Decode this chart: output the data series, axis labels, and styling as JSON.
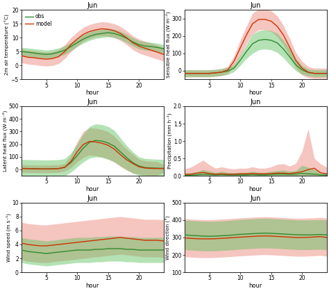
{
  "hours": [
    1,
    2,
    3,
    4,
    5,
    6,
    7,
    8,
    9,
    10,
    11,
    12,
    13,
    14,
    15,
    16,
    17,
    18,
    19,
    20,
    21,
    22,
    23,
    24
  ],
  "obs_color": "#2e8b2e",
  "model_color": "#cc3300",
  "obs_fill": "#5abf5a",
  "model_fill": "#e87060",
  "obs_fill_alpha": 0.45,
  "model_fill_alpha": 0.4,
  "subplots": [
    {
      "title": "Jun",
      "ylabel": "2m air temperature (°C)",
      "xlabel": "hour",
      "ylim": [
        -5,
        20
      ],
      "yticks": [
        -5,
        0,
        5,
        10,
        15,
        20
      ],
      "obs_mean": [
        5.0,
        4.8,
        4.5,
        4.2,
        4.0,
        4.2,
        4.8,
        5.5,
        6.8,
        8.2,
        9.5,
        10.5,
        11.2,
        11.5,
        11.8,
        11.5,
        10.8,
        9.8,
        8.5,
        7.5,
        7.0,
        6.8,
        6.5,
        6.0
      ],
      "obs_lo": [
        3.5,
        3.3,
        3.0,
        2.8,
        2.6,
        2.8,
        3.3,
        4.0,
        5.3,
        6.7,
        8.0,
        9.0,
        9.7,
        10.0,
        10.3,
        10.0,
        9.3,
        8.3,
        7.0,
        6.0,
        5.5,
        5.3,
        5.0,
        4.5
      ],
      "obs_hi": [
        6.5,
        6.3,
        6.0,
        5.8,
        5.5,
        5.8,
        6.3,
        7.0,
        8.3,
        9.7,
        11.0,
        12.0,
        12.7,
        13.0,
        13.3,
        13.0,
        12.3,
        11.3,
        10.0,
        9.0,
        8.5,
        8.3,
        8.0,
        7.5
      ],
      "model_mean": [
        3.5,
        3.0,
        2.8,
        2.5,
        2.3,
        2.5,
        3.2,
        5.0,
        7.5,
        9.5,
        11.2,
        12.2,
        12.8,
        13.2,
        13.0,
        12.5,
        11.5,
        10.0,
        8.2,
        7.0,
        6.2,
        5.5,
        4.8,
        4.0
      ],
      "model_lo": [
        1.0,
        0.5,
        0.3,
        0.0,
        -0.2,
        0.0,
        0.7,
        2.5,
        5.0,
        7.0,
        8.7,
        9.7,
        10.3,
        10.7,
        10.5,
        10.0,
        9.0,
        7.5,
        5.7,
        4.5,
        3.7,
        3.0,
        2.3,
        1.5
      ],
      "model_hi": [
        6.0,
        5.5,
        5.3,
        5.0,
        4.8,
        5.0,
        5.7,
        7.5,
        10.0,
        12.0,
        13.7,
        14.7,
        15.3,
        15.7,
        15.5,
        15.0,
        14.0,
        12.5,
        10.7,
        9.5,
        8.7,
        8.0,
        7.3,
        6.5
      ],
      "legend": true
    },
    {
      "title": "Jun",
      "ylabel": "Sensible heat flux (W m⁻²)",
      "xlabel": "hour",
      "ylim": [
        -50,
        350
      ],
      "yticks": [
        0,
        100,
        200,
        300
      ],
      "obs_mean": [
        -15,
        -15,
        -15,
        -15,
        -15,
        -12,
        -8,
        -2,
        15,
        60,
        110,
        155,
        175,
        180,
        175,
        160,
        125,
        80,
        35,
        5,
        -10,
        -15,
        -15,
        -15
      ],
      "obs_lo": [
        -35,
        -35,
        -35,
        -35,
        -35,
        -32,
        -28,
        -22,
        -5,
        30,
        70,
        100,
        120,
        125,
        120,
        105,
        75,
        35,
        0,
        -20,
        -30,
        -35,
        -35,
        -35
      ],
      "obs_hi": [
        5,
        5,
        5,
        5,
        5,
        8,
        12,
        18,
        35,
        90,
        150,
        210,
        230,
        235,
        230,
        215,
        175,
        125,
        70,
        30,
        10,
        5,
        5,
        5
      ],
      "model_mean": [
        -15,
        -15,
        -15,
        -15,
        -15,
        -12,
        -8,
        5,
        55,
        130,
        205,
        270,
        295,
        295,
        285,
        255,
        205,
        135,
        60,
        15,
        -8,
        -15,
        -15,
        -15
      ],
      "model_lo": [
        -35,
        -35,
        -35,
        -35,
        -35,
        -32,
        -28,
        -15,
        25,
        85,
        155,
        210,
        235,
        235,
        225,
        195,
        150,
        85,
        15,
        -25,
        -40,
        -45,
        -45,
        -45
      ],
      "model_hi": [
        5,
        5,
        5,
        5,
        5,
        8,
        12,
        25,
        85,
        175,
        255,
        330,
        355,
        355,
        345,
        315,
        260,
        185,
        105,
        55,
        24,
        15,
        15,
        15
      ],
      "legend": false
    },
    {
      "title": "Jun",
      "ylabel": "Latent heat flux (W m⁻²)",
      "xlabel": "hour",
      "ylim": [
        -50,
        500
      ],
      "yticks": [
        0,
        100,
        200,
        300,
        400,
        500
      ],
      "obs_mean": [
        10,
        8,
        7,
        6,
        5,
        6,
        8,
        18,
        55,
        110,
        170,
        215,
        230,
        225,
        210,
        185,
        140,
        95,
        55,
        28,
        16,
        13,
        11,
        10
      ],
      "obs_lo": [
        -60,
        -62,
        -63,
        -65,
        -65,
        -65,
        -62,
        -50,
        -20,
        20,
        60,
        90,
        100,
        95,
        80,
        60,
        30,
        0,
        -30,
        -45,
        -55,
        -58,
        -59,
        -60
      ],
      "obs_hi": [
        80,
        78,
        77,
        76,
        75,
        76,
        78,
        86,
        130,
        200,
        280,
        340,
        360,
        355,
        340,
        310,
        250,
        190,
        140,
        101,
        87,
        84,
        81,
        80
      ],
      "model_mean": [
        8,
        7,
        6,
        5,
        5,
        6,
        8,
        18,
        65,
        140,
        198,
        222,
        218,
        208,
        192,
        162,
        118,
        78,
        48,
        22,
        12,
        9,
        8,
        8
      ],
      "model_lo": [
        -22,
        -23,
        -24,
        -25,
        -25,
        -24,
        -22,
        -12,
        15,
        60,
        95,
        115,
        110,
        100,
        85,
        60,
        25,
        -5,
        -25,
        -38,
        -45,
        -47,
        -47,
        -22
      ],
      "model_hi": [
        38,
        37,
        36,
        35,
        35,
        36,
        38,
        48,
        115,
        220,
        301,
        329,
        326,
        316,
        299,
        264,
        211,
        161,
        121,
        82,
        69,
        65,
        63,
        38
      ],
      "legend": false
    },
    {
      "title": "Jun",
      "ylabel": "Precipitation (mm h⁻¹)",
      "xlabel": "hour",
      "ylim": [
        0,
        2.0
      ],
      "yticks": [
        0.0,
        0.5,
        1.0,
        1.5,
        2.0
      ],
      "obs_mean": [
        0.02,
        0.02,
        0.03,
        0.05,
        0.04,
        0.03,
        0.04,
        0.03,
        0.03,
        0.03,
        0.03,
        0.04,
        0.03,
        0.03,
        0.04,
        0.05,
        0.05,
        0.04,
        0.05,
        0.07,
        0.06,
        0.05,
        0.03,
        0.02
      ],
      "obs_lo": [
        0.0,
        0.0,
        0.0,
        0.0,
        0.0,
        0.0,
        0.0,
        0.0,
        0.0,
        0.0,
        0.0,
        0.0,
        0.0,
        0.0,
        0.0,
        0.0,
        0.0,
        0.0,
        0.0,
        0.0,
        0.0,
        0.0,
        0.0,
        0.0
      ],
      "obs_hi": [
        0.08,
        0.09,
        0.12,
        0.18,
        0.14,
        0.1,
        0.13,
        0.1,
        0.09,
        0.1,
        0.1,
        0.13,
        0.1,
        0.1,
        0.13,
        0.15,
        0.17,
        0.13,
        0.15,
        0.3,
        0.25,
        0.18,
        0.1,
        0.08
      ],
      "model_mean": [
        0.04,
        0.05,
        0.08,
        0.1,
        0.07,
        0.05,
        0.06,
        0.05,
        0.05,
        0.06,
        0.06,
        0.07,
        0.06,
        0.06,
        0.07,
        0.08,
        0.08,
        0.07,
        0.09,
        0.12,
        0.18,
        0.22,
        0.09,
        0.06
      ],
      "model_lo": [
        0.0,
        0.0,
        0.0,
        0.0,
        0.0,
        0.0,
        0.0,
        0.0,
        0.0,
        0.0,
        0.0,
        0.0,
        0.0,
        0.0,
        0.0,
        0.0,
        0.0,
        0.0,
        0.0,
        0.0,
        0.0,
        0.0,
        0.0,
        0.0
      ],
      "model_hi": [
        0.2,
        0.25,
        0.35,
        0.45,
        0.32,
        0.22,
        0.26,
        0.22,
        0.2,
        0.22,
        0.22,
        0.26,
        0.22,
        0.22,
        0.26,
        0.33,
        0.35,
        0.28,
        0.36,
        0.7,
        1.35,
        0.5,
        0.35,
        0.25
      ],
      "legend": false
    },
    {
      "title": "Jun",
      "ylabel": "Wind speed (m s⁻¹)",
      "xlabel": "hour",
      "ylim": [
        0,
        10
      ],
      "yticks": [
        0,
        2,
        4,
        6,
        8,
        10
      ],
      "obs_mean": [
        3.2,
        3.0,
        2.9,
        2.8,
        2.7,
        2.8,
        2.9,
        3.0,
        3.1,
        3.2,
        3.2,
        3.2,
        3.3,
        3.3,
        3.4,
        3.4,
        3.4,
        3.3,
        3.3,
        3.2,
        3.2,
        3.2,
        3.2,
        3.2
      ],
      "obs_lo": [
        1.4,
        1.2,
        1.1,
        1.0,
        0.9,
        1.0,
        1.1,
        1.2,
        1.3,
        1.4,
        1.4,
        1.4,
        1.5,
        1.5,
        1.6,
        1.6,
        1.6,
        1.5,
        1.5,
        1.4,
        1.4,
        1.4,
        1.4,
        1.4
      ],
      "obs_hi": [
        5.0,
        4.8,
        4.7,
        4.6,
        4.5,
        4.6,
        4.7,
        4.8,
        4.9,
        5.0,
        5.0,
        5.0,
        5.1,
        5.1,
        5.2,
        5.2,
        5.2,
        5.1,
        5.1,
        5.0,
        5.0,
        5.0,
        5.0,
        5.0
      ],
      "model_mean": [
        4.2,
        4.0,
        3.9,
        3.8,
        3.8,
        3.9,
        4.0,
        4.1,
        4.2,
        4.3,
        4.4,
        4.5,
        4.6,
        4.7,
        4.8,
        4.9,
        5.0,
        4.9,
        4.8,
        4.7,
        4.6,
        4.6,
        4.6,
        4.5
      ],
      "model_lo": [
        1.8,
        1.6,
        1.5,
        1.4,
        1.4,
        1.5,
        1.6,
        1.7,
        1.8,
        1.9,
        2.0,
        2.1,
        2.2,
        2.3,
        2.4,
        2.5,
        2.6,
        2.5,
        2.4,
        2.3,
        2.2,
        2.2,
        2.2,
        2.1
      ],
      "model_hi": [
        7.2,
        7.0,
        6.9,
        6.8,
        6.8,
        6.9,
        7.0,
        7.1,
        7.2,
        7.3,
        7.4,
        7.5,
        7.6,
        7.7,
        7.8,
        7.9,
        8.0,
        7.9,
        7.8,
        7.7,
        7.6,
        7.6,
        7.6,
        7.5
      ],
      "legend": false
    },
    {
      "title": "Jun",
      "ylabel": "Wind direction (°)",
      "xlabel": "hour",
      "ylim": [
        100,
        500
      ],
      "yticks": [
        100,
        200,
        300,
        400,
        500
      ],
      "obs_mean": [
        315,
        312,
        310,
        308,
        307,
        308,
        310,
        312,
        315,
        318,
        320,
        322,
        324,
        325,
        324,
        322,
        320,
        318,
        316,
        315,
        315,
        316,
        317,
        315
      ],
      "obs_lo": [
        230,
        227,
        225,
        223,
        222,
        223,
        225,
        227,
        230,
        233,
        235,
        237,
        239,
        240,
        239,
        237,
        235,
        233,
        231,
        230,
        230,
        231,
        232,
        230
      ],
      "obs_hi": [
        400,
        397,
        395,
        393,
        392,
        393,
        395,
        397,
        400,
        403,
        405,
        407,
        409,
        410,
        409,
        407,
        405,
        403,
        401,
        400,
        400,
        401,
        402,
        400
      ],
      "model_mean": [
        298,
        295,
        293,
        292,
        292,
        293,
        295,
        297,
        300,
        302,
        304,
        306,
        308,
        309,
        308,
        306,
        304,
        302,
        300,
        300,
        301,
        303,
        305,
        300
      ],
      "model_lo": [
        190,
        187,
        185,
        184,
        184,
        185,
        187,
        189,
        192,
        194,
        196,
        198,
        200,
        201,
        200,
        198,
        196,
        194,
        192,
        192,
        193,
        195,
        197,
        192
      ],
      "model_hi": [
        408,
        405,
        403,
        402,
        402,
        403,
        405,
        407,
        410,
        412,
        414,
        416,
        418,
        419,
        418,
        416,
        414,
        412,
        410,
        410,
        411,
        413,
        415,
        410
      ],
      "legend": false
    }
  ]
}
